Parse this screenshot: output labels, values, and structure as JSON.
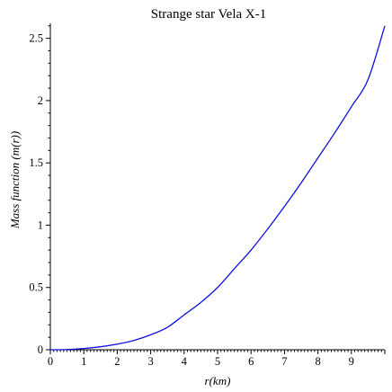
{
  "chart_data": {
    "type": "line",
    "title": "Strange star Vela X-1",
    "xlabel": "r(km)",
    "ylabel": "Mass function (m(r))",
    "xlim": [
      0,
      10
    ],
    "ylim": [
      0,
      2.62
    ],
    "x_ticks": [
      "0",
      "1",
      "2",
      "3",
      "4",
      "5",
      "6",
      "7",
      "8",
      "9"
    ],
    "y_ticks": [
      "0",
      "0.5",
      "1",
      "1.5",
      "2",
      "2.5"
    ],
    "grid": false,
    "series": [
      {
        "color": "#1010e0",
        "x": [
          0,
          0.5,
          1,
          1.5,
          2,
          2.5,
          3,
          3.5,
          4,
          4.5,
          5,
          5.5,
          6,
          6.5,
          7,
          7.5,
          8,
          8.5,
          9,
          9.5,
          10
        ],
        "y": [
          0,
          0.002,
          0.01,
          0.024,
          0.045,
          0.075,
          0.12,
          0.18,
          0.28,
          0.38,
          0.5,
          0.65,
          0.8,
          0.97,
          1.15,
          1.34,
          1.54,
          1.74,
          1.95,
          2.17,
          2.6
        ]
      }
    ]
  }
}
